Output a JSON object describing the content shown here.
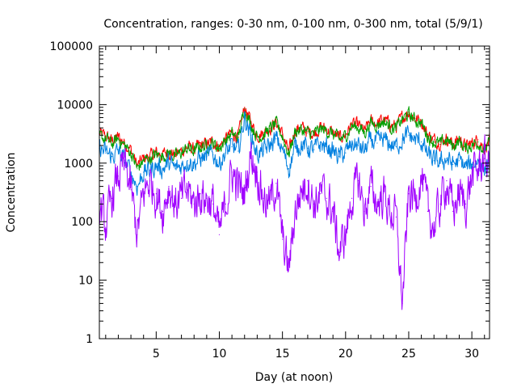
{
  "chart_data": {
    "type": "line",
    "title": "Concentration, ranges: 0-30 nm, 0-100 nm, 0-300 nm, total (5/9/1)",
    "xlabel": "Day (at noon)",
    "ylabel": "Concentration",
    "xlim": [
      0.5,
      31.4
    ],
    "ylim": [
      1,
      100000
    ],
    "y_scale": "log",
    "grid": false,
    "x_ticks": [
      5,
      10,
      15,
      20,
      25,
      30
    ],
    "x_tick_labels": [
      "5",
      "10",
      "15",
      "20",
      "25",
      "30"
    ],
    "y_ticks": [
      1,
      10,
      100,
      1000,
      10000,
      100000
    ],
    "y_tick_labels": [
      "1",
      "10",
      "100",
      "1000",
      "10000",
      "100000"
    ],
    "series": [
      {
        "color": "#ff0000",
        "x": [
          0.5,
          1.0,
          1.5,
          2.0,
          2.5,
          3.0,
          3.5,
          4.0,
          4.5,
          5.0,
          5.5,
          6.0,
          6.5,
          7.0,
          7.5,
          8.0,
          8.5,
          9.0,
          9.5,
          10.0,
          10.5,
          11.0,
          11.5,
          12.0,
          12.5,
          13.0,
          13.5,
          14.0,
          14.5,
          15.0,
          15.5,
          16.0,
          16.5,
          17.0,
          17.5,
          18.0,
          18.5,
          19.0,
          19.5,
          20.0,
          20.5,
          21.0,
          21.5,
          22.0,
          22.5,
          23.0,
          23.5,
          24.0,
          24.5,
          25.0,
          25.5,
          26.0,
          26.5,
          27.0,
          27.5,
          28.0,
          28.5,
          29.0,
          29.5,
          30.0,
          30.5,
          31.0,
          31.4
        ],
        "y": [
          3200,
          2900,
          2400,
          2800,
          2200,
          1700,
          900,
          1200,
          1300,
          1500,
          1400,
          1600,
          1400,
          1600,
          1900,
          1700,
          2000,
          2100,
          2300,
          1900,
          2600,
          3300,
          2800,
          9000,
          5000,
          3000,
          3300,
          4000,
          5000,
          3100,
          1500,
          3800,
          4000,
          3500,
          3300,
          4100,
          3800,
          3300,
          2700,
          3100,
          4600,
          4400,
          3500,
          5200,
          4800,
          5600,
          4600,
          4200,
          6000,
          7400,
          5800,
          5300,
          3100,
          2500,
          2300,
          2700,
          2100,
          2600,
          1900,
          2200,
          2500,
          1800,
          2400
        ]
      },
      {
        "color": "#00a000",
        "x": [
          0.5,
          1.0,
          1.5,
          2.0,
          2.5,
          3.0,
          3.5,
          4.0,
          4.5,
          5.0,
          5.5,
          6.0,
          6.5,
          7.0,
          7.5,
          8.0,
          8.5,
          9.0,
          9.5,
          10.0,
          10.5,
          11.0,
          11.5,
          12.0,
          12.5,
          13.0,
          13.5,
          14.0,
          14.5,
          15.0,
          15.5,
          16.0,
          16.5,
          17.0,
          17.5,
          18.0,
          18.5,
          19.0,
          19.5,
          20.0,
          20.5,
          21.0,
          21.5,
          22.0,
          22.5,
          23.0,
          23.5,
          24.0,
          24.5,
          25.0,
          25.5,
          26.0,
          26.5,
          27.0,
          27.5,
          28.0,
          28.5,
          29.0,
          29.5,
          30.0,
          30.5,
          31.0,
          31.4
        ],
        "y": [
          2800,
          2600,
          2100,
          2600,
          2000,
          1500,
          800,
          1100,
          1200,
          1400,
          1300,
          1500,
          1300,
          1500,
          1800,
          1600,
          1900,
          2000,
          2200,
          1800,
          2500,
          3100,
          2700,
          8500,
          4700,
          2800,
          3100,
          3800,
          4700,
          2900,
          1400,
          3500,
          3700,
          3300,
          3100,
          3800,
          3600,
          3100,
          2500,
          2900,
          4300,
          4100,
          3300,
          4900,
          4500,
          5200,
          4300,
          3900,
          5600,
          6900,
          5400,
          4900,
          2900,
          2300,
          2100,
          2500,
          1950,
          2400,
          1750,
          2050,
          2300,
          1650,
          2200
        ]
      },
      {
        "color": "#0080e0",
        "x": [
          0.5,
          1.0,
          1.5,
          2.0,
          2.5,
          3.0,
          3.5,
          4.0,
          4.5,
          5.0,
          5.5,
          6.0,
          6.5,
          7.0,
          7.5,
          8.0,
          8.5,
          9.0,
          9.5,
          10.0,
          10.5,
          11.0,
          11.5,
          12.0,
          12.5,
          13.0,
          13.5,
          14.0,
          14.5,
          15.0,
          15.5,
          16.0,
          16.5,
          17.0,
          17.5,
          18.0,
          18.5,
          19.0,
          19.5,
          20.0,
          20.5,
          21.0,
          21.5,
          22.0,
          22.5,
          23.0,
          23.5,
          24.0,
          24.5,
          25.0,
          25.5,
          26.0,
          26.5,
          27.0,
          27.5,
          28.0,
          28.5,
          29.0,
          29.5,
          30.0,
          30.5,
          31.0,
          31.4
        ],
        "y": [
          1800,
          1500,
          1300,
          1600,
          1100,
          700,
          400,
          700,
          750,
          900,
          800,
          1000,
          800,
          900,
          1100,
          1000,
          1200,
          1300,
          1400,
          1000,
          1500,
          1900,
          1600,
          6000,
          3000,
          1400,
          1600,
          2000,
          2600,
          1700,
          800,
          1900,
          2100,
          1800,
          1700,
          2100,
          1900,
          1600,
          1300,
          1500,
          2100,
          2000,
          1600,
          2400,
          2200,
          2500,
          2100,
          1900,
          2600,
          3000,
          2500,
          2300,
          1400,
          1100,
          1000,
          1200,
          950,
          1100,
          850,
          950,
          1100,
          800,
          1000
        ]
      },
      {
        "color": "#a000ff",
        "x": [
          0.5,
          1.0,
          1.5,
          2.0,
          2.5,
          3.0,
          3.5,
          4.0,
          4.5,
          5.0,
          5.5,
          6.0,
          6.5,
          7.0,
          7.5,
          8.0,
          8.5,
          9.0,
          9.5,
          10.0,
          10.5,
          11.0,
          11.5,
          12.0,
          12.5,
          13.0,
          13.5,
          14.0,
          14.5,
          15.0,
          15.5,
          16.0,
          16.5,
          17.0,
          17.5,
          18.0,
          18.5,
          19.0,
          19.5,
          20.0,
          20.5,
          21.0,
          21.5,
          22.0,
          22.5,
          23.0,
          23.5,
          24.0,
          24.5,
          25.0,
          25.5,
          26.0,
          26.5,
          27.0,
          27.5,
          28.0,
          28.5,
          29.0,
          29.5,
          30.0,
          30.5,
          31.0,
          31.4
        ],
        "y": [
          200,
          80,
          250,
          600,
          900,
          350,
          60,
          300,
          500,
          300,
          150,
          400,
          200,
          250,
          350,
          200,
          300,
          250,
          200,
          60,
          200,
          700,
          400,
          300,
          1500,
          700,
          250,
          200,
          450,
          50,
          15,
          150,
          350,
          500,
          200,
          300,
          250,
          150,
          30,
          60,
          250,
          500,
          150,
          400,
          200,
          300,
          150,
          120,
          4,
          300,
          250,
          600,
          150,
          80,
          200,
          500,
          150,
          300,
          200,
          600,
          800,
          1200,
          900
        ]
      }
    ]
  }
}
